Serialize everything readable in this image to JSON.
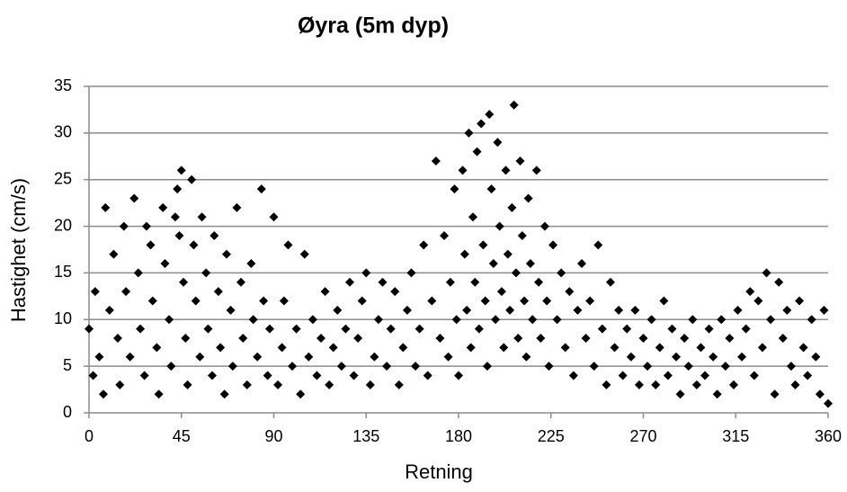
{
  "chart_data": {
    "type": "scatter",
    "title": "Øyra (5m dyp)",
    "xlabel": "Retning",
    "ylabel": "Hastighet (cm/s)",
    "color": "#000000",
    "grid": true,
    "xlim": [
      0,
      360
    ],
    "xticks": [
      0,
      45,
      90,
      135,
      180,
      225,
      270,
      315,
      360
    ],
    "ylim": [
      0,
      35
    ],
    "yticks": [
      0,
      5,
      10,
      15,
      20,
      25,
      30,
      35
    ],
    "x": [
      0,
      2,
      3,
      5,
      7,
      8,
      10,
      12,
      14,
      15,
      17,
      18,
      20,
      22,
      24,
      25,
      27,
      28,
      30,
      31,
      33,
      34,
      36,
      37,
      39,
      40,
      42,
      43,
      44,
      45,
      46,
      47,
      48,
      50,
      51,
      52,
      54,
      55,
      57,
      58,
      60,
      61,
      63,
      64,
      66,
      67,
      69,
      70,
      72,
      74,
      75,
      77,
      79,
      80,
      82,
      84,
      85,
      87,
      88,
      90,
      92,
      94,
      95,
      97,
      99,
      101,
      103,
      105,
      107,
      109,
      111,
      113,
      115,
      117,
      119,
      121,
      123,
      125,
      127,
      129,
      131,
      133,
      135,
      137,
      139,
      141,
      143,
      145,
      147,
      149,
      151,
      153,
      155,
      157,
      159,
      161,
      163,
      165,
      167,
      169,
      171,
      173,
      175,
      176,
      178,
      179,
      180,
      182,
      183,
      184,
      185,
      186,
      187,
      188,
      189,
      190,
      191,
      192,
      193,
      194,
      195,
      196,
      197,
      198,
      199,
      200,
      201,
      202,
      203,
      204,
      205,
      206,
      207,
      208,
      209,
      210,
      211,
      212,
      213,
      214,
      215,
      216,
      218,
      219,
      220,
      222,
      223,
      224,
      226,
      228,
      230,
      232,
      234,
      236,
      238,
      240,
      242,
      244,
      246,
      248,
      250,
      252,
      254,
      256,
      258,
      260,
      262,
      264,
      266,
      268,
      270,
      272,
      274,
      276,
      278,
      280,
      282,
      284,
      286,
      288,
      290,
      292,
      294,
      296,
      298,
      300,
      302,
      304,
      306,
      308,
      310,
      312,
      314,
      316,
      318,
      320,
      322,
      324,
      326,
      328,
      330,
      332,
      334,
      336,
      338,
      340,
      342,
      344,
      346,
      348,
      350,
      352,
      354,
      356,
      358,
      360
    ],
    "values": [
      9,
      4,
      13,
      6,
      2,
      22,
      11,
      17,
      8,
      3,
      20,
      13,
      6,
      23,
      15,
      9,
      4,
      20,
      18,
      12,
      7,
      2,
      22,
      16,
      10,
      5,
      21,
      24,
      19,
      26,
      14,
      8,
      3,
      25,
      18,
      12,
      6,
      21,
      15,
      9,
      4,
      19,
      13,
      7,
      2,
      17,
      11,
      5,
      22,
      14,
      8,
      3,
      16,
      10,
      6,
      24,
      12,
      4,
      9,
      21,
      3,
      7,
      12,
      18,
      5,
      9,
      2,
      17,
      6,
      10,
      4,
      8,
      13,
      3,
      7,
      11,
      5,
      9,
      14,
      4,
      8,
      12,
      15,
      3,
      6,
      10,
      14,
      5,
      9,
      13,
      3,
      7,
      11,
      15,
      5,
      9,
      18,
      4,
      12,
      27,
      8,
      19,
      6,
      14,
      24,
      10,
      4,
      26,
      17,
      11,
      30,
      7,
      21,
      14,
      28,
      9,
      31,
      18,
      12,
      5,
      32,
      24,
      16,
      10,
      29,
      20,
      13,
      7,
      26,
      17,
      11,
      22,
      33,
      15,
      8,
      27,
      19,
      12,
      6,
      23,
      16,
      10,
      26,
      14,
      8,
      20,
      12,
      5,
      18,
      10,
      15,
      7,
      13,
      4,
      11,
      16,
      8,
      12,
      5,
      18,
      9,
      3,
      14,
      7,
      11,
      4,
      9,
      6,
      11,
      3,
      8,
      5,
      10,
      3,
      7,
      12,
      4,
      9,
      6,
      2,
      8,
      5,
      10,
      3,
      7,
      4,
      9,
      6,
      2,
      10,
      5,
      8,
      3,
      11,
      6,
      9,
      13,
      4,
      12,
      7,
      15,
      10,
      2,
      14,
      8,
      11,
      5,
      3,
      12,
      7,
      4,
      10,
      6,
      2,
      11,
      1
    ]
  }
}
